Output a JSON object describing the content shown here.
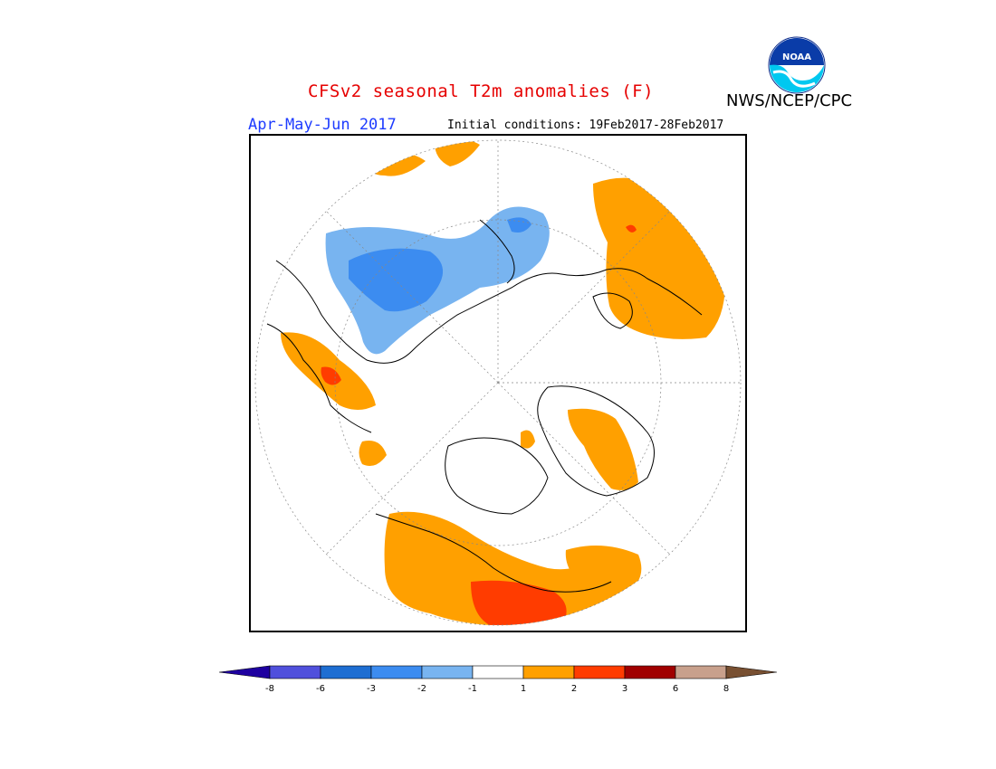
{
  "header": {
    "title": "CFSv2 seasonal T2m anomalies (F)",
    "org": "NWS/NCEP/CPC",
    "period": "Apr-May-Jun 2017",
    "initial_conditions": "Initial conditions: 19Feb2017-28Feb2017",
    "logo_text": "NOAA"
  },
  "colors": {
    "title": "#e60000",
    "period": "#1e3cff",
    "warm1": "#ffa000",
    "warm2": "#ff3c00",
    "cool1": "#78b4f0",
    "cool2": "#3c8cf0"
  },
  "legend": {
    "ticks": [
      "-8",
      "-6",
      "-3",
      "-2",
      "-1",
      "1",
      "2",
      "3",
      "6",
      "8"
    ],
    "colors": [
      "#1e00a0",
      "#5050dc",
      "#1e6ed2",
      "#3c8cf0",
      "#78b4f0",
      "#ffffff",
      "#ffa000",
      "#ff3c00",
      "#a00000",
      "#c8a08c",
      "#785032"
    ]
  }
}
